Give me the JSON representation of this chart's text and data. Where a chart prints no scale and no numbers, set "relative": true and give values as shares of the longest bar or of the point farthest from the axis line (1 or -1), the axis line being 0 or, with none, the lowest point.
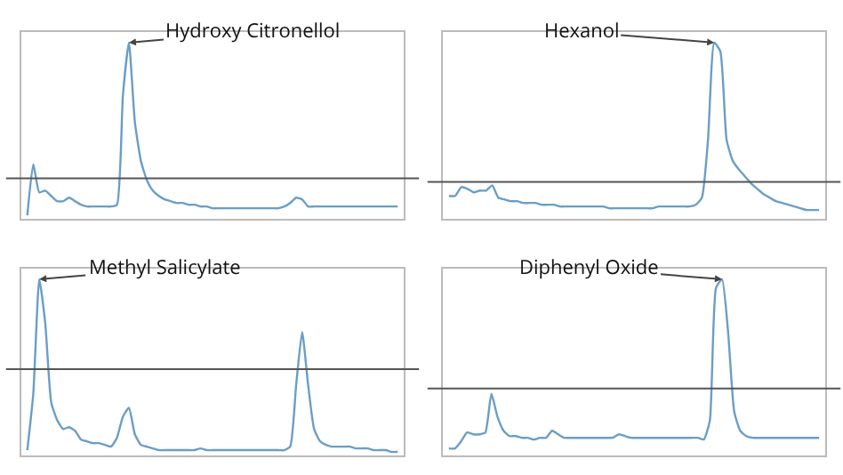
{
  "chart_data": [
    {
      "type": "line",
      "relative": true,
      "categories": [
        null,
        null,
        null,
        null,
        null,
        null,
        null,
        null,
        null,
        null,
        null,
        null,
        null,
        null,
        null,
        null,
        null,
        null,
        null,
        null,
        null,
        null,
        null,
        null,
        null,
        null,
        null,
        null,
        null,
        null,
        null,
        null,
        null,
        null,
        null,
        null,
        null,
        null,
        null,
        null,
        null,
        null,
        null,
        null,
        null,
        null,
        null,
        null,
        null,
        null,
        null,
        null,
        null,
        null,
        null,
        null,
        null,
        null,
        null,
        null,
        null,
        null,
        null
      ],
      "series": [
        {
          "color": "#6a9ec8",
          "values": [
            0.02,
            0.31,
            0.15,
            0.16,
            0.13,
            0.1,
            0.1,
            0.12,
            0.1,
            0.08,
            0.07,
            0.07,
            0.07,
            0.07,
            0.07,
            0.08,
            0.7,
            1,
            0.55,
            0.33,
            0.22,
            0.16,
            0.13,
            0.11,
            0.1,
            0.09,
            0.09,
            0.08,
            0.08,
            0.07,
            0.07,
            0.06,
            0.06,
            0.06,
            0.06,
            0.06,
            0.06,
            0.06,
            0.06,
            0.06,
            0.06,
            0.06,
            0.06,
            0.07,
            0.09,
            0.12,
            0.11,
            0.07,
            0.07,
            0.07,
            0.07,
            0.07,
            0.07,
            0.07,
            0.07,
            0.07,
            0.07,
            0.07,
            0.07,
            0.07,
            0.07,
            0.07,
            0.07
          ]
        }
      ],
      "ref_lines": [
        {
          "axis": "y",
          "value": 0.23,
          "color": "#555555"
        }
      ],
      "annotations": [
        "Hydroxy Citronellol"
      ]
    },
    {
      "type": "line",
      "relative": true,
      "categories": [
        null,
        null,
        null,
        null,
        null,
        null,
        null,
        null,
        null,
        null,
        null,
        null,
        null,
        null,
        null,
        null,
        null,
        null,
        null,
        null,
        null,
        null,
        null,
        null,
        null,
        null,
        null,
        null,
        null,
        null,
        null,
        null,
        null,
        null,
        null,
        null,
        null,
        null,
        null,
        null,
        null,
        null,
        null,
        null,
        null,
        null,
        null,
        null,
        null,
        null,
        null,
        null,
        null,
        null,
        null,
        null,
        null,
        null,
        null,
        null,
        null
      ],
      "series": [
        {
          "color": "#6a9ec8",
          "values": [
            0.13,
            0.13,
            0.18,
            0.17,
            0.15,
            0.16,
            0.16,
            0.19,
            0.12,
            0.11,
            0.1,
            0.1,
            0.09,
            0.09,
            0.09,
            0.08,
            0.08,
            0.08,
            0.07,
            0.07,
            0.07,
            0.07,
            0.07,
            0.07,
            0.07,
            0.07,
            0.06,
            0.06,
            0.06,
            0.06,
            0.06,
            0.06,
            0.06,
            0.06,
            0.07,
            0.07,
            0.07,
            0.07,
            0.07,
            0.07,
            0.08,
            0.12,
            0.45,
            1,
            0.95,
            0.45,
            0.33,
            0.28,
            0.24,
            0.2,
            0.17,
            0.14,
            0.12,
            0.1,
            0.09,
            0.08,
            0.07,
            0.06,
            0.05,
            0.05,
            0.05
          ]
        }
      ],
      "ref_lines": [
        {
          "axis": "y",
          "value": 0.21,
          "color": "#555555"
        }
      ],
      "annotations": [
        "Hexanol"
      ]
    },
    {
      "type": "line",
      "relative": true,
      "categories": [
        null,
        null,
        null,
        null,
        null,
        null,
        null,
        null,
        null,
        null,
        null,
        null,
        null,
        null,
        null,
        null,
        null,
        null,
        null,
        null,
        null,
        null,
        null,
        null,
        null,
        null,
        null,
        null,
        null,
        null,
        null,
        null,
        null,
        null,
        null,
        null,
        null,
        null,
        null,
        null,
        null,
        null,
        null,
        null,
        null,
        null,
        null,
        null,
        null,
        null,
        null,
        null,
        null,
        null,
        null,
        null,
        null,
        null,
        null,
        null,
        null,
        null,
        null
      ],
      "series": [
        {
          "color": "#6a9ec8",
          "values": [
            0.03,
            0.35,
            1,
            0.75,
            0.3,
            0.2,
            0.15,
            0.16,
            0.14,
            0.09,
            0.08,
            0.07,
            0.07,
            0.06,
            0.05,
            0.1,
            0.22,
            0.27,
            0.12,
            0.06,
            0.05,
            0.04,
            0.03,
            0.03,
            0.03,
            0.03,
            0.03,
            0.03,
            0.03,
            0.04,
            0.03,
            0.03,
            0.03,
            0.03,
            0.03,
            0.03,
            0.03,
            0.03,
            0.03,
            0.03,
            0.03,
            0.03,
            0.03,
            0.03,
            0.05,
            0.4,
            0.7,
            0.4,
            0.15,
            0.08,
            0.06,
            0.05,
            0.05,
            0.05,
            0.05,
            0.04,
            0.04,
            0.04,
            0.03,
            0.03,
            0.03,
            0.02,
            0.02
          ]
        }
      ],
      "ref_lines": [
        {
          "axis": "y",
          "value": 0.49,
          "color": "#555555"
        }
      ],
      "annotations": [
        "Methyl Salicylate"
      ]
    },
    {
      "type": "line",
      "relative": true,
      "categories": [
        null,
        null,
        null,
        null,
        null,
        null,
        null,
        null,
        null,
        null,
        null,
        null,
        null,
        null,
        null,
        null,
        null,
        null,
        null,
        null,
        null,
        null,
        null,
        null,
        null,
        null,
        null,
        null,
        null,
        null,
        null,
        null,
        null,
        null,
        null,
        null,
        null,
        null,
        null,
        null,
        null,
        null,
        null,
        null,
        null,
        null,
        null,
        null,
        null,
        null,
        null,
        null,
        null,
        null,
        null,
        null,
        null,
        null,
        null,
        null,
        null,
        null
      ],
      "series": [
        {
          "color": "#6a9ec8",
          "values": [
            0.04,
            0.04,
            0.08,
            0.13,
            0.12,
            0.12,
            0.13,
            0.35,
            0.22,
            0.14,
            0.11,
            0.11,
            0.1,
            0.1,
            0.09,
            0.1,
            0.1,
            0.14,
            0.12,
            0.1,
            0.1,
            0.1,
            0.1,
            0.1,
            0.1,
            0.1,
            0.1,
            0.1,
            0.12,
            0.11,
            0.1,
            0.1,
            0.1,
            0.1,
            0.1,
            0.1,
            0.1,
            0.1,
            0.1,
            0.1,
            0.1,
            0.1,
            0.09,
            0.2,
            0.95,
            1,
            0.7,
            0.25,
            0.14,
            0.11,
            0.1,
            0.1,
            0.1,
            0.1,
            0.1,
            0.1,
            0.1,
            0.1,
            0.1,
            0.1,
            0.1,
            0.1
          ]
        }
      ],
      "ref_lines": [
        {
          "axis": "y",
          "value": 0.38,
          "color": "#555555"
        }
      ],
      "annotations": [
        "Diphenyl Oxide"
      ]
    }
  ]
}
